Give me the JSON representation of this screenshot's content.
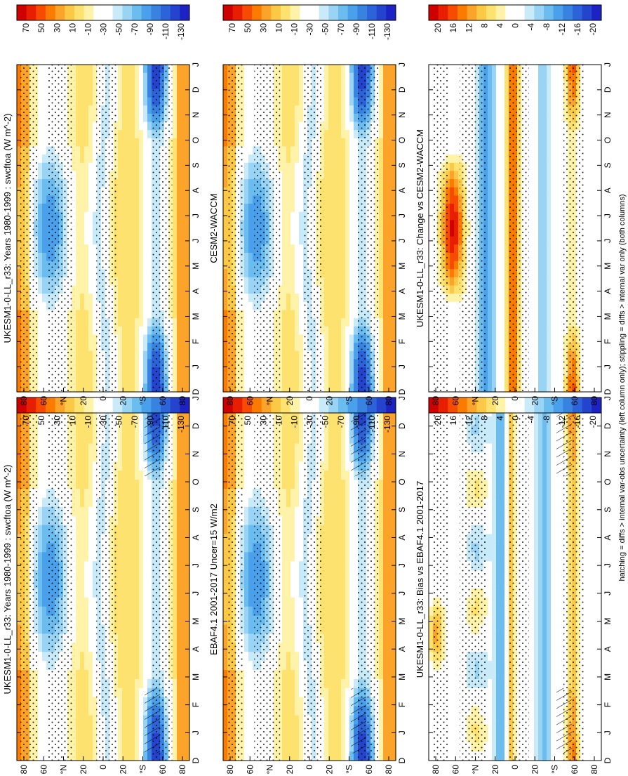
{
  "figure": {
    "footnote": "hatching = diffs > internal var-obs uncertainty (left column only); stippling = diffs > internal var only (both columns)"
  },
  "chart_data": [
    {
      "type": "heatmap",
      "id": "p1",
      "title": "UKESM1-0-LL_r33: Years 1980-1999 : swcftoa (W m^-2)",
      "xlabel": "",
      "ylabel": "",
      "x": [
        "D",
        "J",
        "F",
        "M",
        "A",
        "M",
        "J",
        "J",
        "A",
        "S",
        "O",
        "N",
        "D",
        "J"
      ],
      "y": [
        "80",
        "60",
        "°N",
        "20",
        "0",
        "20",
        "°S",
        "60",
        "80"
      ],
      "ylim": [
        -90,
        90
      ],
      "colorbar": {
        "labels": [
          "70",
          "50",
          "30",
          "10",
          "-10",
          "-30",
          "-50",
          "-70",
          "-90",
          "-110",
          "-130"
        ]
      },
      "pattern": "swcf",
      "hatching": true,
      "stippling": true
    },
    {
      "type": "heatmap",
      "id": "p2",
      "title": "UKESM1-0-LL_r33: Years 1980-1999 : swcftoa (W m^-2)",
      "xlabel": "",
      "ylabel": "",
      "x": [
        "D",
        "J",
        "F",
        "M",
        "A",
        "M",
        "J",
        "J",
        "A",
        "S",
        "O",
        "N",
        "D",
        "J"
      ],
      "y": [
        "80",
        "60",
        "°N",
        "20",
        "0",
        "20",
        "°S",
        "60",
        "80"
      ],
      "ylim": [
        -90,
        90
      ],
      "colorbar": {
        "labels": [
          "70",
          "50",
          "30",
          "10",
          "-10",
          "-30",
          "-50",
          "-70",
          "-90",
          "-110",
          "-130"
        ]
      },
      "pattern": "swcf",
      "hatching": false,
      "stippling": true
    },
    {
      "type": "heatmap",
      "id": "p3",
      "title": "EBAF4.1 2001-2017 Uncer=15 W/m2",
      "xlabel": "",
      "ylabel": "",
      "x": [
        "D",
        "J",
        "F",
        "M",
        "A",
        "M",
        "J",
        "J",
        "A",
        "S",
        "O",
        "N",
        "D",
        "J"
      ],
      "y": [
        "80",
        "60",
        "°N",
        "20",
        "0",
        "20",
        "°S",
        "60",
        "80"
      ],
      "ylim": [
        -90,
        90
      ],
      "colorbar": {
        "labels": [
          "70",
          "50",
          "30",
          "10",
          "-10",
          "-30",
          "-50",
          "-70",
          "-90",
          "-110",
          "-130"
        ]
      },
      "pattern": "swcf",
      "hatching": true,
      "stippling": true
    },
    {
      "type": "heatmap",
      "id": "p4",
      "title": "CESM2-WACCM",
      "xlabel": "",
      "ylabel": "",
      "x": [
        "D",
        "J",
        "F",
        "M",
        "A",
        "M",
        "J",
        "J",
        "A",
        "S",
        "O",
        "N",
        "D",
        "J"
      ],
      "y": [
        "80",
        "60",
        "°N",
        "20",
        "0",
        "20",
        "°S",
        "60",
        "80"
      ],
      "ylim": [
        -90,
        90
      ],
      "colorbar": {
        "labels": [
          "70",
          "50",
          "30",
          "10",
          "-10",
          "-30",
          "-50",
          "-70",
          "-90",
          "-110",
          "-130"
        ]
      },
      "pattern": "swcf",
      "hatching": false,
      "stippling": true
    },
    {
      "type": "heatmap",
      "id": "p5",
      "title": "UKESM1-0-LL_r33: Bias vs EBAF4.1 2001-2017",
      "xlabel": "",
      "ylabel": "",
      "x": [
        "D",
        "J",
        "F",
        "M",
        "A",
        "M",
        "J",
        "J",
        "A",
        "S",
        "O",
        "N",
        "D",
        "J"
      ],
      "y": [
        "80",
        "60",
        "°N",
        "20",
        "0",
        "20",
        "°S",
        "60",
        "80"
      ],
      "ylim": [
        -90,
        90
      ],
      "colorbar": {
        "labels": [
          "20",
          "16",
          "12",
          "8",
          "4",
          "0",
          "-4",
          "-8",
          "-12",
          "-16",
          "-20"
        ]
      },
      "pattern": "bias",
      "hatching": true,
      "stippling": true
    },
    {
      "type": "heatmap",
      "id": "p6",
      "title": "UKESM1-0-LL_r33: Change vs CESM2-WACCM",
      "xlabel": "",
      "ylabel": "",
      "x": [
        "D",
        "J",
        "F",
        "M",
        "A",
        "M",
        "J",
        "J",
        "A",
        "S",
        "O",
        "N",
        "D",
        "J"
      ],
      "y": [
        "80",
        "60",
        "°N",
        "20",
        "0",
        "20",
        "°S",
        "60",
        "80"
      ],
      "ylim": [
        -90,
        90
      ],
      "colorbar": {
        "labels": [
          "20",
          "16",
          "12",
          "8",
          "4",
          "0",
          "-4",
          "-8",
          "-12",
          "-16",
          "-20"
        ]
      },
      "pattern": "change",
      "hatching": false,
      "stippling": true
    }
  ],
  "colors": {
    "scale": [
      "#cf0000",
      "#e81e00",
      "#f64b00",
      "#fb7b00",
      "#fca42a",
      "#fcc947",
      "#fde26f",
      "#fef3a8",
      "#ffffff",
      "#ffffff",
      "#c9eaf8",
      "#99d4f4",
      "#6bbcef",
      "#4aa0ea",
      "#3883e0",
      "#2d63d8",
      "#2444cd",
      "#1d22c3"
    ]
  }
}
